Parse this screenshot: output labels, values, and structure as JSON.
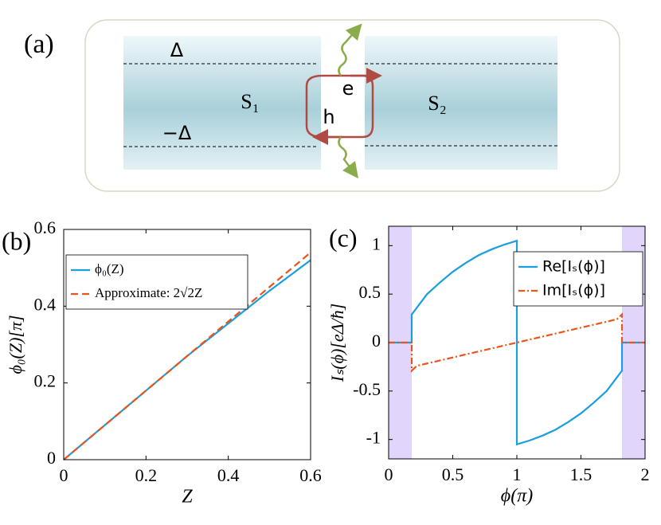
{
  "diagram": {
    "label": "(a)",
    "gap_top": "Δ",
    "gap_bottom": "−Δ",
    "left": "S₁",
    "right": "S₂",
    "electron": "e",
    "hole": "h"
  },
  "chart_data": [
    {
      "type": "line",
      "label": "(b)",
      "xlabel": "Z",
      "ylabel": "ϕ₀(Z)[π]",
      "xlim": [
        0,
        0.6
      ],
      "ylim": [
        0,
        0.6
      ],
      "xticks": [
        0,
        0.2,
        0.4,
        0.6
      ],
      "yticks": [
        0,
        0.2,
        0.4,
        0.6
      ],
      "legend": "upper left",
      "series": [
        {
          "name": "ϕ₀(Z)",
          "color": "#1a9ee0",
          "linestyle": "solid",
          "x": [
            0,
            0.1,
            0.2,
            0.3,
            0.4,
            0.5,
            0.6
          ],
          "values": [
            0,
            0.09,
            0.18,
            0.27,
            0.355,
            0.44,
            0.52
          ]
        },
        {
          "name": "Approximate: 2√2Z",
          "color": "#e8541c",
          "linestyle": "dashed",
          "x": [
            0,
            0.1,
            0.2,
            0.3,
            0.4,
            0.5,
            0.6
          ],
          "values": [
            0,
            0.09,
            0.18,
            0.27,
            0.36,
            0.45,
            0.54
          ]
        }
      ]
    },
    {
      "type": "line",
      "label": "(c)",
      "xlabel": "ϕ(π)",
      "ylabel": "Iₛ(ϕ)[eΔ/ħ]",
      "xlim": [
        0,
        2
      ],
      "ylim": [
        -1.2,
        1.2
      ],
      "xticks": [
        0,
        0.5,
        1,
        1.5,
        2
      ],
      "yticks": [
        -1,
        -0.5,
        0,
        0.5,
        1
      ],
      "legend": "upper right",
      "shaded": [
        [
          0,
          0.18
        ],
        [
          1.82,
          2
        ]
      ],
      "shade_color": "#e2d5fb",
      "series": [
        {
          "name": "Re[Iₛ(ϕ)]",
          "color": "#1a9ee0",
          "linestyle": "solid",
          "x": [
            0,
            0.18,
            0.18,
            0.3,
            0.4,
            0.5,
            0.6,
            0.7,
            0.8,
            0.9,
            1,
            1,
            1.1,
            1.2,
            1.3,
            1.4,
            1.5,
            1.6,
            1.7,
            1.82,
            1.82,
            2
          ],
          "values": [
            0,
            0,
            0.29,
            0.5,
            0.62,
            0.73,
            0.82,
            0.9,
            0.96,
            1.01,
            1.05,
            -1.05,
            -1.01,
            -0.96,
            -0.9,
            -0.82,
            -0.73,
            -0.62,
            -0.5,
            -0.29,
            0,
            0
          ]
        },
        {
          "name": "Im[Iₛ(ϕ)]",
          "color": "#e8541c",
          "linestyle": "dashdot",
          "x": [
            0,
            0.18,
            0.18,
            0.22,
            1,
            1.78,
            1.82,
            1.82,
            2
          ],
          "values": [
            0,
            0,
            -0.29,
            -0.24,
            0,
            0.24,
            0.29,
            0,
            0
          ]
        }
      ]
    }
  ]
}
